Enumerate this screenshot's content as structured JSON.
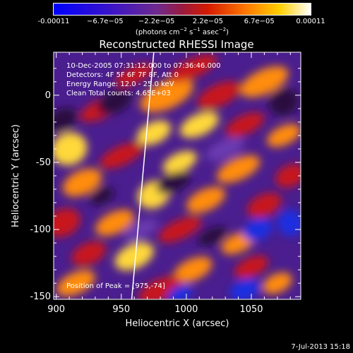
{
  "colorbar": {
    "ticks": [
      "-0.00011",
      "−6.7e−05",
      "−2.2e−05",
      "2.2e−05",
      "6.7e−05",
      "0.00011"
    ],
    "units_text": "(photons cm",
    "units_exp1": "−2",
    "units_mid": " s",
    "units_exp2": "−1",
    "units_mid2": " asec",
    "units_exp3": "−2",
    "units_close": ")"
  },
  "chart_data": {
    "type": "heatmap",
    "title": "Reconstructed RHESSI Image",
    "xlabel": "Heliocentric X (arcsec)",
    "ylabel": "Heliocentric Y (arcsec)",
    "xlim": [
      898,
      1088
    ],
    "ylim": [
      -152,
      32
    ],
    "xticks": [
      "900",
      "950",
      "1000",
      "1050"
    ],
    "yticks": [
      "0",
      "-50",
      "-100",
      "-150"
    ],
    "color_range": [
      -0.00011,
      0.00011
    ],
    "colormap": "blue-purple-red-yellow-white",
    "peak": [
      975,
      -74
    ],
    "annotations": [
      "10-Dec-2005 07:31:12.000 to 07:36:46.000",
      "Detectors: 4F 5F 6F 7F 8F, Att 0",
      "Energy Range: 12.0 - 25.0 keV",
      "Clean     Total counts: 4.65E+03"
    ],
    "peak_label": "Position of Peak = [975,-74]",
    "limb_line": [
      [
        975,
        32
      ],
      [
        958,
        -152
      ]
    ]
  },
  "footer": "7-Jul-2013 15:18",
  "colors": {
    "background": "#000000",
    "text": "#ffffff"
  }
}
